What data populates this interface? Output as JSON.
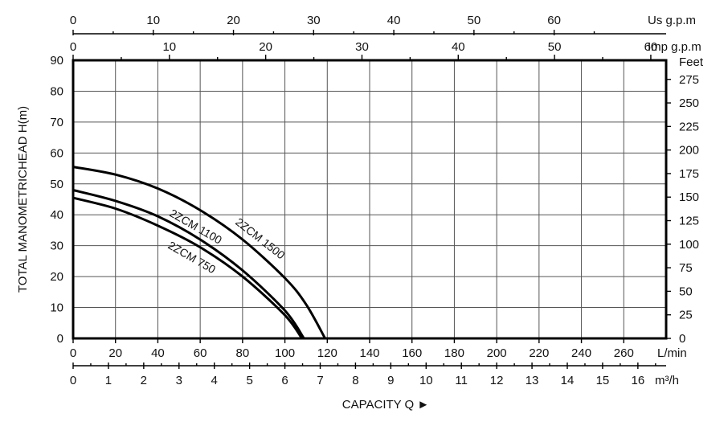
{
  "chart_data": {
    "type": "line",
    "x_axis": {
      "label": "CAPACITY Q ►",
      "unit": "L/min",
      "range": [
        0,
        280
      ],
      "ticks": [
        0,
        20,
        40,
        60,
        80,
        100,
        120,
        140,
        160,
        180,
        200,
        220,
        240,
        260
      ],
      "grid_step": 20
    },
    "y_axis": {
      "label": "TOTAL MANOMETRICHEAD H(m)",
      "range": [
        0,
        90
      ],
      "ticks": [
        0,
        10,
        20,
        30,
        40,
        50,
        60,
        70,
        80,
        90
      ]
    },
    "right_axis": {
      "label": "Feet",
      "ticks": [
        0,
        25,
        50,
        75,
        100,
        125,
        150,
        175,
        200,
        225,
        250,
        275
      ]
    },
    "top_axis_us": {
      "label": "Us g.p.m",
      "ticks": [
        0,
        10,
        20,
        30,
        40,
        50,
        60
      ]
    },
    "top_axis_imp": {
      "label": "Imp g.p.m",
      "ticks": [
        0,
        10,
        20,
        30,
        40,
        50,
        60
      ]
    },
    "bottom_axis_m3h": {
      "label": "m³/h",
      "ticks": [
        0,
        1,
        2,
        3,
        4,
        5,
        6,
        7,
        8,
        9,
        10,
        11,
        12,
        13,
        14,
        15,
        16
      ]
    },
    "series": [
      {
        "name": "2ZCM 1500",
        "x": [
          0,
          20,
          40,
          60,
          80,
          100,
          110,
          119
        ],
        "y": [
          55.5,
          53,
          48.5,
          41.5,
          32,
          19.5,
          11,
          0
        ]
      },
      {
        "name": "2ZCM 1100",
        "x": [
          0,
          20,
          40,
          60,
          80,
          100,
          109
        ],
        "y": [
          48,
          44.5,
          39.5,
          32,
          22,
          9,
          0
        ]
      },
      {
        "name": "2ZCM 750",
        "x": [
          0,
          20,
          40,
          60,
          80,
          100,
          108
        ],
        "y": [
          45.5,
          42,
          36.5,
          29.5,
          20,
          7.5,
          0
        ]
      }
    ]
  }
}
